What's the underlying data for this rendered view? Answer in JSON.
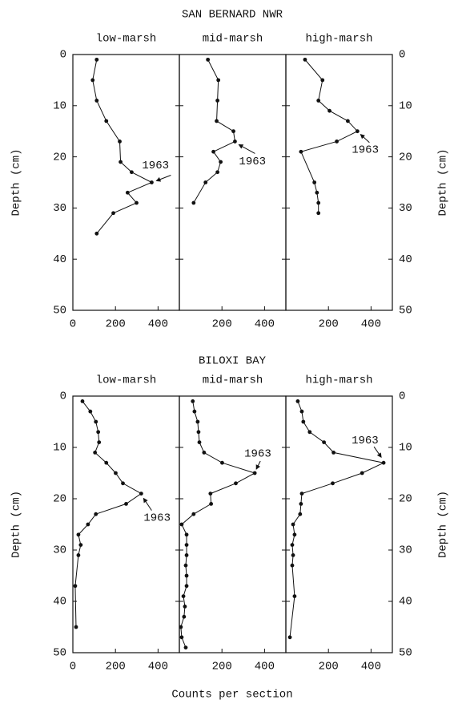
{
  "figure": {
    "rows": [
      {
        "title": "SAN BERNARD NWR"
      },
      {
        "title": "BILOXI BAY"
      }
    ],
    "xlabel": "Counts per section"
  },
  "chart_data": [
    {
      "type": "line",
      "title": "low-marsh",
      "ylabel": "Depth (cm)",
      "ytick_labels": "left",
      "y_inverted": true,
      "xlim": [
        0,
        500
      ],
      "xticks": [
        0,
        200,
        400
      ],
      "ylim": [
        0,
        50
      ],
      "yticks": [
        0,
        10,
        20,
        30,
        40,
        50
      ],
      "color": "#111111",
      "x": [
        112,
        93,
        112,
        157,
        220,
        224,
        276,
        370,
        257,
        299,
        190,
        112
      ],
      "y": [
        1,
        5,
        9,
        13,
        17,
        21,
        23,
        25,
        27,
        29,
        31,
        35
      ],
      "annotations": [
        {
          "text": "1963"
        }
      ]
    },
    {
      "type": "line",
      "title": "mid-marsh",
      "ytick_labels": "none",
      "y_inverted": true,
      "xlim": [
        0,
        500
      ],
      "xticks": [
        200,
        400
      ],
      "ylim": [
        0,
        50
      ],
      "yticks": [
        0,
        10,
        20,
        30,
        40,
        50
      ],
      "color": "#111111",
      "x": [
        134,
        183,
        179,
        175,
        254,
        261,
        160,
        194,
        179,
        123,
        67
      ],
      "y": [
        1,
        5,
        9,
        13,
        15,
        17,
        19,
        21,
        23,
        25,
        29
      ],
      "annotations": [
        {
          "text": "1963"
        }
      ]
    },
    {
      "type": "line",
      "title": "high-marsh",
      "ylabel": "Depth (cm)",
      "ytick_labels": "right",
      "y_inverted": true,
      "xlim": [
        0,
        500
      ],
      "xticks": [
        200,
        400
      ],
      "ylim": [
        0,
        50
      ],
      "yticks": [
        0,
        10,
        20,
        30,
        40,
        50
      ],
      "color": "#111111",
      "x": [
        90,
        172,
        153,
        205,
        291,
        336,
        239,
        71,
        134,
        146,
        153,
        153
      ],
      "y": [
        1,
        5,
        9,
        11,
        13,
        15,
        17,
        19,
        25,
        27,
        29,
        31
      ],
      "annotations": [
        {
          "text": "1963"
        }
      ]
    },
    {
      "type": "line",
      "title": "low-marsh",
      "ylabel": "Depth (cm)",
      "ytick_labels": "left",
      "y_inverted": true,
      "xlim": [
        0,
        500
      ],
      "xticks": [
        0,
        200,
        400
      ],
      "ylim": [
        0,
        50
      ],
      "yticks": [
        0,
        10,
        20,
        30,
        40,
        50
      ],
      "color": "#111111",
      "x": [
        45,
        82,
        108,
        119,
        123,
        104,
        157,
        201,
        235,
        321,
        250,
        108,
        71,
        26,
        37,
        26,
        11,
        15
      ],
      "y": [
        1,
        3,
        5,
        7,
        9,
        11,
        13,
        15,
        17,
        19,
        21,
        23,
        25,
        27,
        29,
        31,
        37,
        45
      ],
      "annotations": [
        {
          "text": "1963"
        }
      ]
    },
    {
      "type": "line",
      "title": "mid-marsh",
      "ytick_labels": "none",
      "y_inverted": true,
      "xlim": [
        0,
        500
      ],
      "xticks": [
        200,
        400
      ],
      "ylim": [
        0,
        50
      ],
      "yticks": [
        0,
        10,
        20,
        30,
        40,
        50
      ],
      "color": "#111111",
      "x": [
        63,
        71,
        86,
        90,
        94,
        116,
        201,
        354,
        265,
        146,
        149,
        67,
        11,
        34,
        34,
        34,
        30,
        34,
        34,
        19,
        26,
        22,
        7,
        11,
        30
      ],
      "y": [
        1,
        3,
        5,
        7,
        9,
        11,
        13,
        15,
        17,
        19,
        21,
        23,
        25,
        27,
        29,
        31,
        33,
        35,
        37,
        39,
        41,
        43,
        45,
        47,
        49
      ],
      "annotations": [
        {
          "text": "1963"
        }
      ]
    },
    {
      "type": "line",
      "title": "high-marsh",
      "ylabel": "Depth (cm)",
      "ytick_labels": "right",
      "y_inverted": true,
      "xlim": [
        0,
        500
      ],
      "xticks": [
        200,
        400
      ],
      "ylim": [
        0,
        50
      ],
      "yticks": [
        0,
        10,
        20,
        30,
        40,
        50
      ],
      "color": "#111111",
      "x": [
        56,
        75,
        82,
        112,
        179,
        224,
        459,
        358,
        220,
        75,
        71,
        67,
        34,
        41,
        30,
        34,
        30,
        41,
        19
      ],
      "y": [
        1,
        3,
        5,
        7,
        9,
        11,
        13,
        15,
        17,
        19,
        21,
        23,
        25,
        27,
        29,
        31,
        33,
        39,
        47
      ],
      "annotations": [
        {
          "text": "1963"
        }
      ]
    }
  ]
}
